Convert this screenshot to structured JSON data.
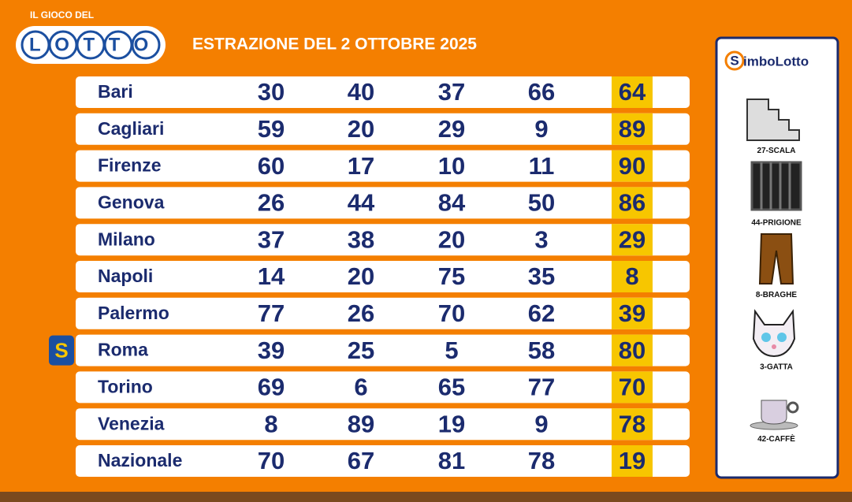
{
  "header": {
    "tagline": "IL GIOCO DEL",
    "logo": "LOTTO",
    "title": "ESTRAZIONE DEL 2 OTTOBRE 2025"
  },
  "table": {
    "rows": [
      [
        "Bari",
        30,
        40,
        37,
        66,
        64
      ],
      [
        "Cagliari",
        59,
        20,
        29,
        9,
        89
      ],
      [
        "Firenze",
        60,
        17,
        10,
        11,
        90
      ],
      [
        "Genova",
        26,
        44,
        84,
        50,
        86
      ],
      [
        "Milano",
        37,
        38,
        20,
        3,
        29
      ],
      [
        "Napoli",
        14,
        20,
        75,
        35,
        8
      ],
      [
        "Palermo",
        77,
        26,
        70,
        62,
        39
      ],
      [
        "Roma",
        39,
        25,
        5,
        58,
        80
      ],
      [
        "Torino",
        69,
        6,
        65,
        77,
        70
      ],
      [
        "Venezia",
        8,
        89,
        19,
        9,
        78
      ],
      [
        "Nazionale",
        70,
        67,
        81,
        78,
        19
      ]
    ],
    "badge": "S"
  },
  "sidebar": {
    "brand_initial": "S",
    "brand": "imboLotto",
    "symbols": [
      "27-SCALA",
      "44-PRIGIONE",
      "8-BRAGHE",
      "3-GATTA",
      "42-CAFFÈ"
    ]
  }
}
